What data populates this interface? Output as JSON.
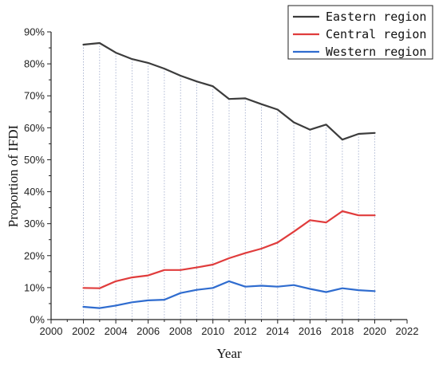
{
  "chart_data": {
    "type": "line",
    "xlabel": "Year",
    "ylabel": "Proportion of IFDI",
    "xlim": [
      2000,
      2022
    ],
    "ylim": [
      0,
      90
    ],
    "x_ticks": [
      "2000",
      "2002",
      "2004",
      "2006",
      "2008",
      "2010",
      "2012",
      "2014",
      "2016",
      "2018",
      "2020",
      "2022"
    ],
    "y_ticks": [
      "0%",
      "10%",
      "20%",
      "30%",
      "40%",
      "50%",
      "60%",
      "70%",
      "80%",
      "90%"
    ],
    "x": [
      2002,
      2003,
      2004,
      2005,
      2006,
      2007,
      2008,
      2009,
      2010,
      2011,
      2012,
      2013,
      2014,
      2015,
      2016,
      2017,
      2018,
      2019,
      2020
    ],
    "series": [
      {
        "name": "Eastern region",
        "color": "#3c3c3c",
        "values": [
          86.0,
          86.5,
          83.5,
          81.5,
          80.3,
          78.5,
          76.3,
          74.5,
          73.0,
          69.0,
          69.2,
          67.4,
          65.7,
          61.7,
          59.4,
          61.0,
          56.3,
          58.1,
          58.4
        ]
      },
      {
        "name": "Central region",
        "color": "#e03c3c",
        "values": [
          9.9,
          9.8,
          12.0,
          13.2,
          13.8,
          15.5,
          15.5,
          16.3,
          17.2,
          19.2,
          20.8,
          22.2,
          24.1,
          27.5,
          31.1,
          30.4,
          33.9,
          32.6,
          32.6
        ]
      },
      {
        "name": "Western region",
        "color": "#2f6ccf",
        "values": [
          4.0,
          3.6,
          4.4,
          5.4,
          6.0,
          6.2,
          8.3,
          9.3,
          9.9,
          12.0,
          10.3,
          10.6,
          10.3,
          10.8,
          9.6,
          8.6,
          9.8,
          9.2,
          8.9
        ]
      }
    ],
    "legend_position": "top-right",
    "grid": "vertical dotted drop lines"
  }
}
